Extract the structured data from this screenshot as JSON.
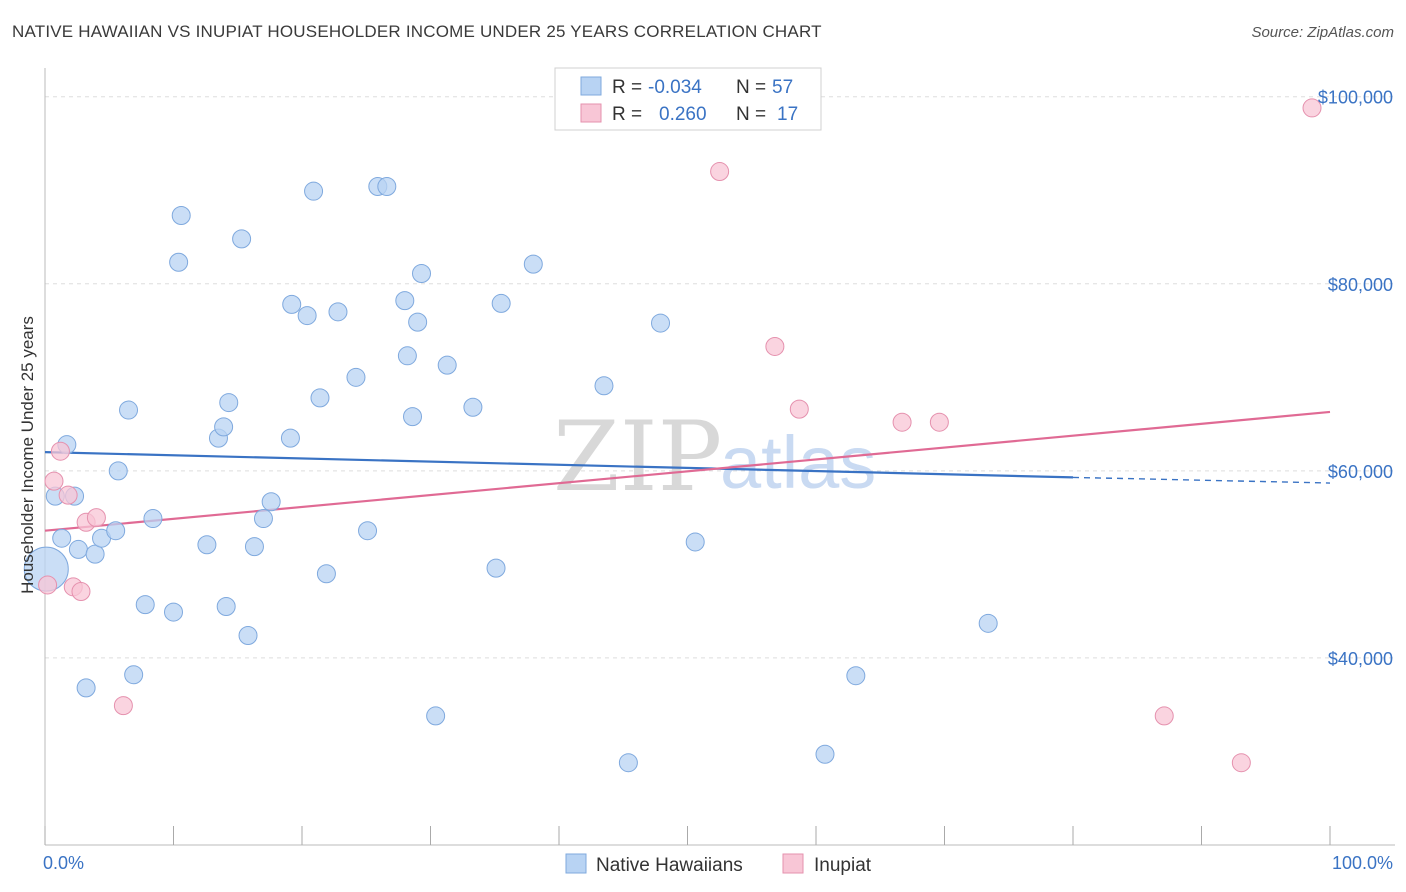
{
  "title": "NATIVE HAWAIIAN VS INUPIAT HOUSEHOLDER INCOME UNDER 25 YEARS CORRELATION CHART",
  "source": "Source: ZipAtlas.com",
  "watermark": {
    "part1": "ZIP",
    "part2": "atlas"
  },
  "colors": {
    "blue_fill": "#b8d3f3",
    "blue_stroke": "#7fa9de",
    "blue_line": "#3a73c4",
    "pink_fill": "#f8c6d6",
    "pink_stroke": "#e591ae",
    "pink_line": "#e06a94",
    "grid": "#dddddd",
    "axis_text": "#3a73c4"
  },
  "legend_top": {
    "rows": [
      {
        "r_label": "R =",
        "r_value": "-0.034",
        "n_label": "N =",
        "n_value": "57"
      },
      {
        "r_label": "R =",
        "r_value": "0.260",
        "n_label": "N =",
        "n_value": "17"
      }
    ]
  },
  "legend_bottom": [
    "Native Hawaiians",
    "Inupiat"
  ],
  "chart_data": {
    "type": "scatter",
    "title": "NATIVE HAWAIIAN VS INUPIAT HOUSEHOLDER INCOME UNDER 25 YEARS CORRELATION CHART",
    "xlabel": "",
    "ylabel": "Householder Income Under 25 years",
    "xlim": [
      0,
      100
    ],
    "ylim": [
      20000,
      102000
    ],
    "x_tick_labels": [
      "0.0%",
      "100.0%"
    ],
    "y_ticks": [
      40000,
      60000,
      80000,
      100000
    ],
    "y_tick_labels": [
      "$40,000",
      "$60,000",
      "$80,000",
      "$100,000"
    ],
    "grid": true,
    "series": [
      {
        "name": "Native Hawaiians",
        "R": -0.034,
        "N": 57,
        "trend": {
          "x": [
            0,
            80
          ],
          "y": [
            62000,
            59300
          ],
          "dashed_extension": {
            "x": [
              80,
              100
            ],
            "y": [
              59300,
              58700
            ]
          }
        },
        "points": [
          {
            "x": 0.1,
            "y": 49500,
            "size": "large"
          },
          {
            "x": 0.8,
            "y": 57300
          },
          {
            "x": 1.3,
            "y": 52800
          },
          {
            "x": 1.7,
            "y": 62800
          },
          {
            "x": 2.3,
            "y": 57300
          },
          {
            "x": 2.6,
            "y": 51600
          },
          {
            "x": 3.2,
            "y": 36800
          },
          {
            "x": 3.9,
            "y": 51100
          },
          {
            "x": 4.4,
            "y": 52800
          },
          {
            "x": 5.5,
            "y": 53600
          },
          {
            "x": 5.7,
            "y": 60000
          },
          {
            "x": 6.5,
            "y": 66500
          },
          {
            "x": 6.9,
            "y": 38200
          },
          {
            "x": 7.8,
            "y": 45700
          },
          {
            "x": 8.4,
            "y": 54900
          },
          {
            "x": 10.0,
            "y": 44900
          },
          {
            "x": 10.6,
            "y": 87300
          },
          {
            "x": 10.4,
            "y": 82300
          },
          {
            "x": 12.6,
            "y": 52100
          },
          {
            "x": 13.5,
            "y": 63500
          },
          {
            "x": 13.9,
            "y": 64700
          },
          {
            "x": 14.3,
            "y": 67300
          },
          {
            "x": 14.1,
            "y": 45500
          },
          {
            "x": 15.3,
            "y": 84800
          },
          {
            "x": 15.8,
            "y": 42400
          },
          {
            "x": 16.3,
            "y": 51900
          },
          {
            "x": 17.0,
            "y": 54900
          },
          {
            "x": 17.6,
            "y": 56700
          },
          {
            "x": 19.1,
            "y": 63500
          },
          {
            "x": 19.2,
            "y": 77800
          },
          {
            "x": 20.4,
            "y": 76600
          },
          {
            "x": 20.9,
            "y": 89900
          },
          {
            "x": 21.4,
            "y": 67800
          },
          {
            "x": 21.9,
            "y": 49000
          },
          {
            "x": 22.8,
            "y": 77000
          },
          {
            "x": 24.2,
            "y": 70000
          },
          {
            "x": 25.1,
            "y": 53600
          },
          {
            "x": 25.9,
            "y": 90400
          },
          {
            "x": 26.6,
            "y": 90400
          },
          {
            "x": 28.0,
            "y": 78200
          },
          {
            "x": 28.2,
            "y": 72300
          },
          {
            "x": 28.6,
            "y": 65800
          },
          {
            "x": 29.0,
            "y": 75900
          },
          {
            "x": 29.3,
            "y": 81100
          },
          {
            "x": 30.4,
            "y": 33800
          },
          {
            "x": 31.3,
            "y": 71300
          },
          {
            "x": 33.3,
            "y": 66800
          },
          {
            "x": 35.1,
            "y": 49600
          },
          {
            "x": 35.5,
            "y": 77900
          },
          {
            "x": 38.0,
            "y": 82100
          },
          {
            "x": 43.5,
            "y": 69100
          },
          {
            "x": 45.4,
            "y": 28800
          },
          {
            "x": 47.9,
            "y": 75800
          },
          {
            "x": 50.6,
            "y": 52400
          },
          {
            "x": 60.7,
            "y": 29700
          },
          {
            "x": 63.1,
            "y": 38100
          },
          {
            "x": 73.4,
            "y": 43700
          }
        ]
      },
      {
        "name": "Inupiat",
        "R": 0.26,
        "N": 17,
        "trend": {
          "x": [
            0,
            100
          ],
          "y": [
            53600,
            66300
          ]
        },
        "points": [
          {
            "x": 0.2,
            "y": 47800
          },
          {
            "x": 0.7,
            "y": 58900
          },
          {
            "x": 1.2,
            "y": 62100
          },
          {
            "x": 1.8,
            "y": 57400
          },
          {
            "x": 2.2,
            "y": 47600
          },
          {
            "x": 2.8,
            "y": 47100
          },
          {
            "x": 3.2,
            "y": 54500
          },
          {
            "x": 4.0,
            "y": 55000
          },
          {
            "x": 6.1,
            "y": 34900
          },
          {
            "x": 52.5,
            "y": 92000
          },
          {
            "x": 56.8,
            "y": 73300
          },
          {
            "x": 58.7,
            "y": 66600
          },
          {
            "x": 66.7,
            "y": 65200
          },
          {
            "x": 69.6,
            "y": 65200
          },
          {
            "x": 87.1,
            "y": 33800
          },
          {
            "x": 93.1,
            "y": 28800
          },
          {
            "x": 98.6,
            "y": 98800
          }
        ]
      }
    ]
  }
}
